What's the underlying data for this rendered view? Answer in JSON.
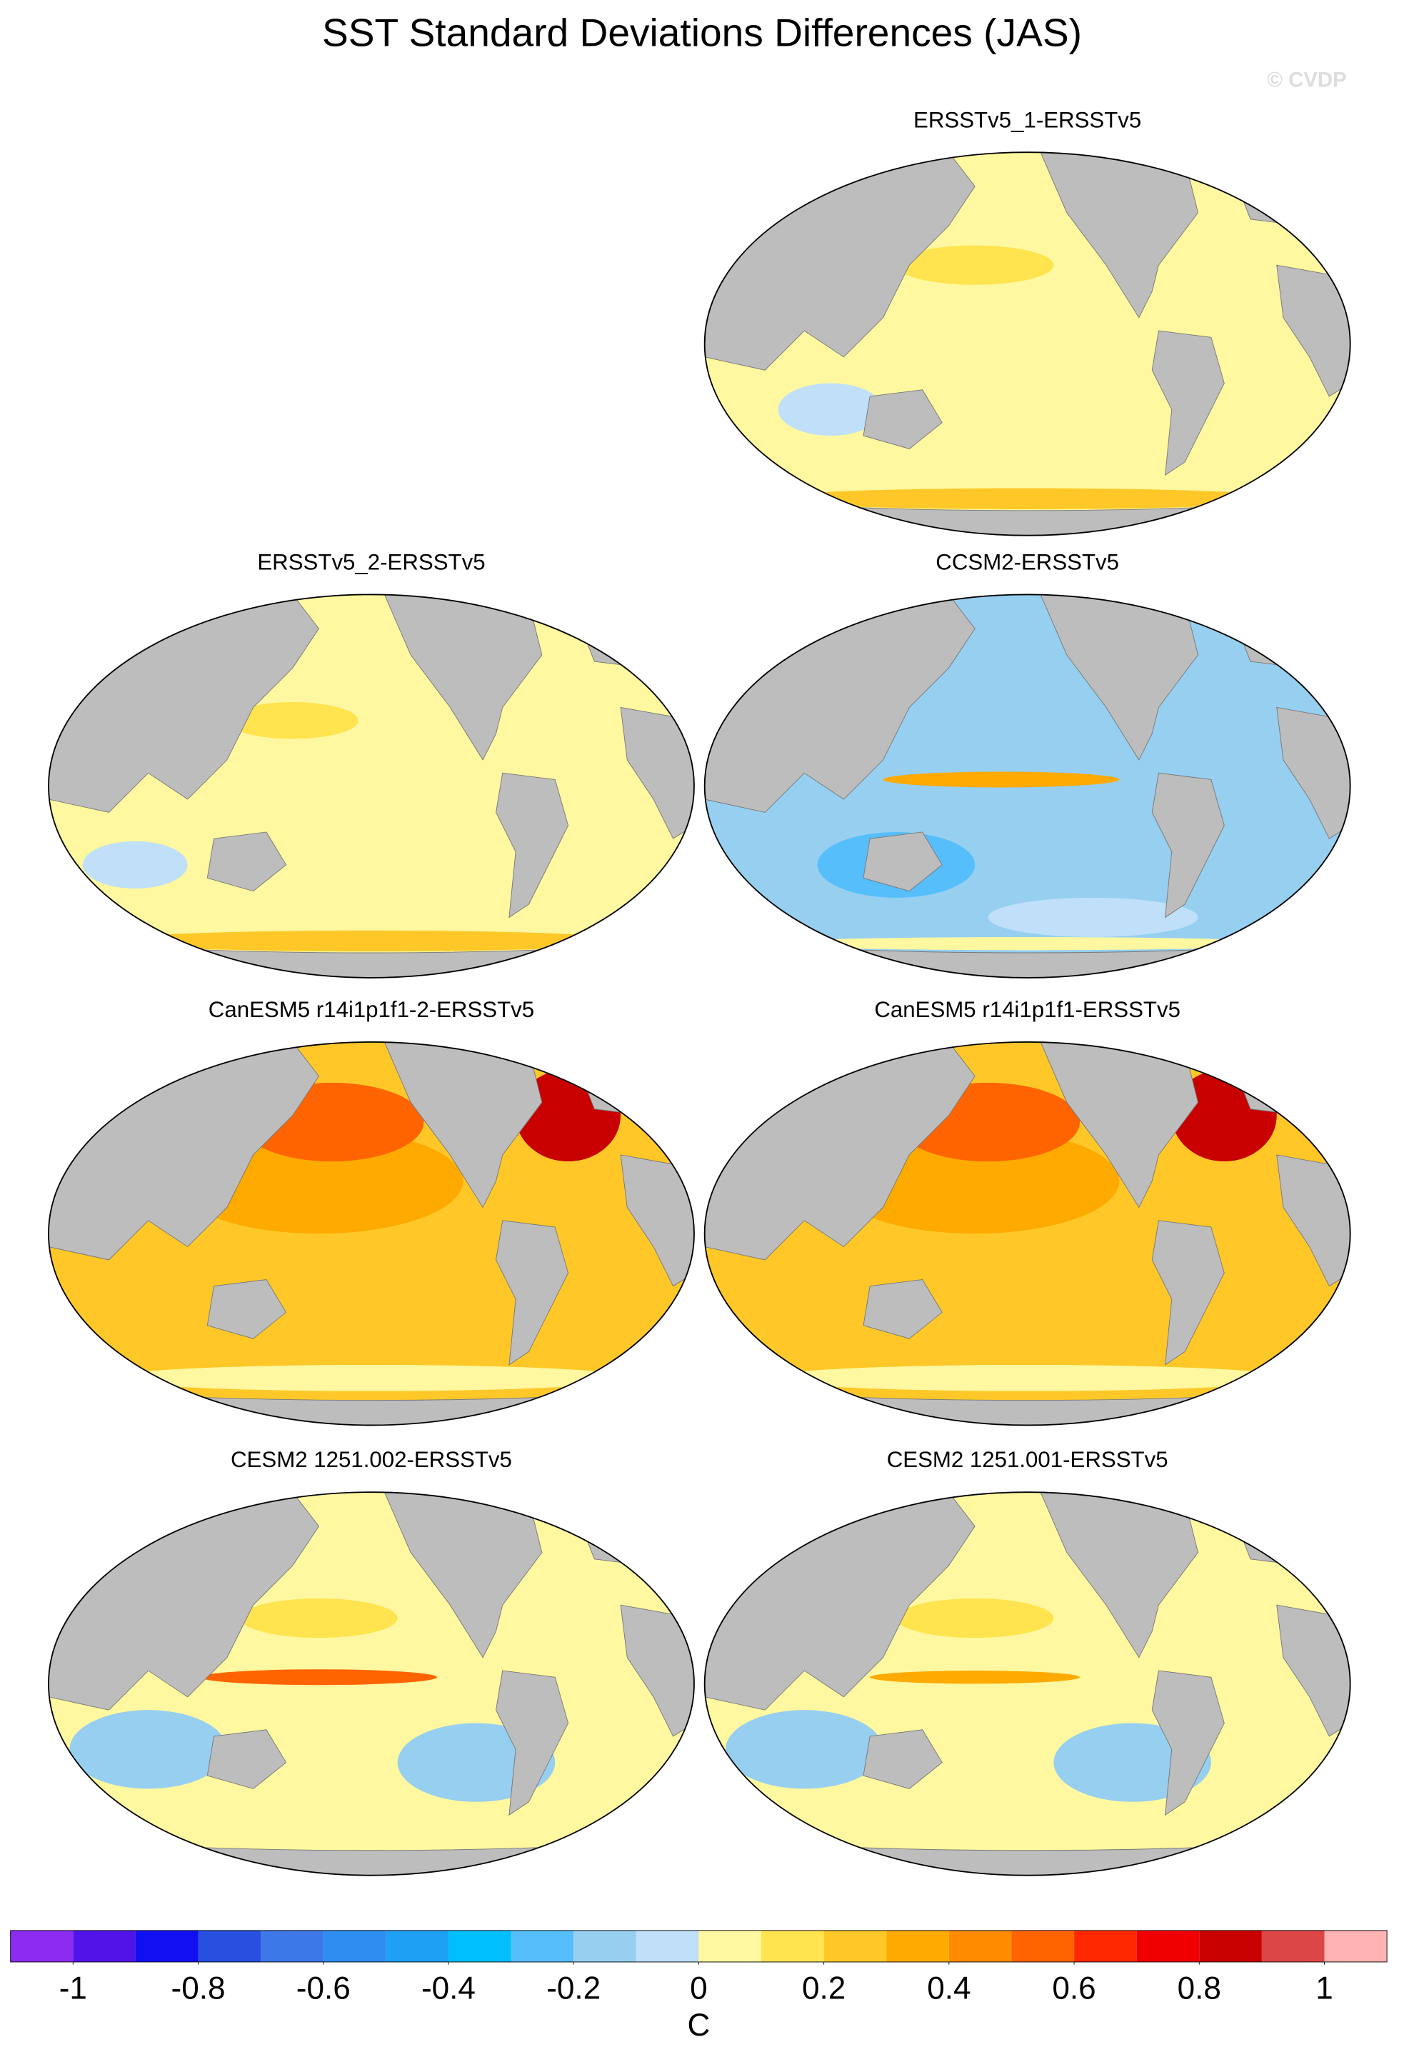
{
  "title": "SST Standard Deviations Differences (JAS)",
  "watermark": "© CVDP",
  "panels": [
    {
      "title": "ERSSTv5_1-ERSSTv5"
    },
    {
      "title": "ERSSTv5_2-ERSSTv5"
    },
    {
      "title": "CCSM2-ERSSTv5"
    },
    {
      "title": "CanESM5 r14i1p1f1-2-ERSSTv5"
    },
    {
      "title": "CanESM5 r14i1p1f1-ERSSTv5"
    },
    {
      "title": "CESM2 1251.002-ERSSTv5"
    },
    {
      "title": "CESM2 1251.001-ERSSTv5"
    }
  ],
  "colorbar": {
    "unit": "C",
    "levels": [
      -1,
      -0.9,
      -0.8,
      -0.7,
      -0.6,
      -0.5,
      -0.4,
      -0.3,
      -0.2,
      -0.1,
      0,
      0.1,
      0.2,
      0.3,
      0.4,
      0.5,
      0.6,
      0.7,
      0.8,
      0.9,
      1
    ],
    "ticks": [
      -1,
      -0.8,
      -0.6,
      -0.4,
      -0.2,
      0,
      0.2,
      0.4,
      0.6,
      0.8,
      1
    ],
    "colors": [
      "#8c2cf0",
      "#5014e8",
      "#1010f0",
      "#2850e0",
      "#3c78e8",
      "#2f8cf0",
      "#1ea0f5",
      "#00bfff",
      "#56befa",
      "#96cff0",
      "#bfe0f8",
      "#fff8a0",
      "#ffe450",
      "#ffc828",
      "#ffaa00",
      "#ff8c00",
      "#ff6400",
      "#ff2800",
      "#f00000",
      "#c80000",
      "#dc4646",
      "#ffb4b4"
    ]
  }
}
